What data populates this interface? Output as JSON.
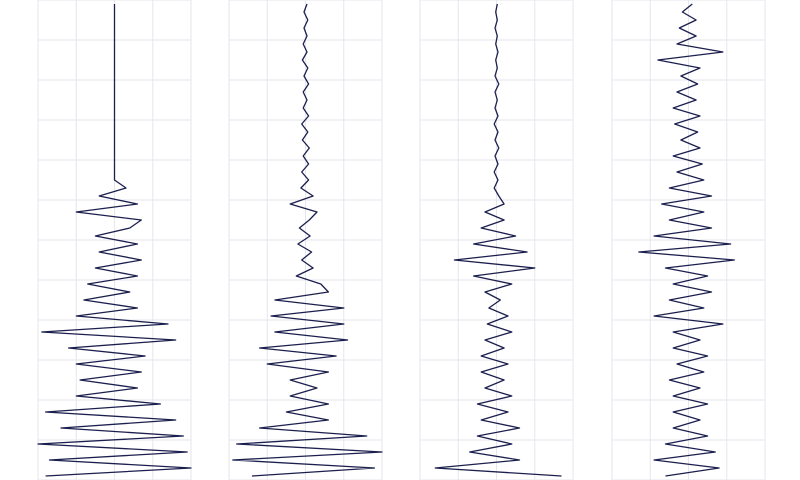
{
  "chart_data": [
    {
      "type": "line",
      "color": "#1b1f4d",
      "grid": true,
      "xlim": [
        -1,
        1
      ],
      "xticks": [
        -1,
        -0.5,
        0,
        0.5,
        1
      ],
      "ylim": [
        0,
        60
      ],
      "yticks": [
        0,
        5,
        10,
        15,
        20,
        25,
        30,
        35,
        40,
        45,
        50,
        55,
        60
      ],
      "values": [
        0,
        0,
        0,
        0,
        0,
        0,
        0,
        0,
        0,
        0,
        0,
        0,
        0,
        0,
        0,
        0,
        0,
        0,
        0,
        0,
        0,
        0,
        0,
        0.15,
        -0.2,
        0.3,
        -0.5,
        0.35,
        0.2,
        -0.25,
        0.3,
        -0.2,
        0.35,
        -0.25,
        0.3,
        -0.35,
        0.2,
        -0.4,
        0.3,
        -0.5,
        0.7,
        -0.95,
        0.8,
        -0.6,
        0.4,
        -0.5,
        0.35,
        -0.45,
        0.3,
        -0.5,
        0.6,
        -0.9,
        0.8,
        -0.7,
        0.9,
        -1.0,
        0.95,
        -0.85,
        1.0,
        -0.9
      ]
    },
    {
      "type": "line",
      "color": "#1b1f4d",
      "grid": true,
      "xlim": [
        -1,
        1
      ],
      "xticks": [
        -1,
        -0.5,
        0,
        0.5,
        1
      ],
      "ylim": [
        0,
        60
      ],
      "yticks": [
        0,
        5,
        10,
        15,
        20,
        25,
        30,
        35,
        40,
        45,
        50,
        55,
        60
      ],
      "values": [
        0.02,
        -0.02,
        0.03,
        -0.02,
        0.02,
        -0.03,
        0.02,
        -0.04,
        0.03,
        -0.02,
        0.04,
        -0.03,
        0.02,
        -0.03,
        0.04,
        -0.05,
        0.03,
        -0.04,
        0.05,
        -0.03,
        0.04,
        -0.05,
        0.04,
        -0.06,
        0.1,
        -0.2,
        0.15,
        0.05,
        -0.08,
        0.06,
        -0.1,
        0.08,
        -0.05,
        0.1,
        -0.12,
        0.2,
        0.3,
        -0.4,
        0.5,
        -0.45,
        0.5,
        -0.4,
        0.55,
        -0.6,
        0.4,
        -0.5,
        0.3,
        -0.2,
        0.15,
        -0.2,
        0.3,
        -0.25,
        0.3,
        -0.6,
        0.8,
        -0.9,
        1.0,
        -0.95,
        0.9,
        -0.7
      ]
    },
    {
      "type": "line",
      "color": "#1b1f4d",
      "grid": true,
      "xlim": [
        -1,
        1
      ],
      "xticks": [
        -1,
        -0.5,
        0,
        0.5,
        1
      ],
      "ylim": [
        0,
        60
      ],
      "yticks": [
        0,
        5,
        10,
        15,
        20,
        25,
        30,
        35,
        40,
        45,
        50,
        55,
        60
      ],
      "values": [
        0.01,
        -0.01,
        0.01,
        -0.02,
        0.01,
        -0.01,
        0.02,
        -0.01,
        0.01,
        -0.02,
        0.03,
        -0.02,
        0.01,
        -0.02,
        0.02,
        -0.03,
        0.02,
        -0.02,
        0.03,
        -0.02,
        0.02,
        -0.03,
        0.02,
        -0.03,
        0.03,
        0.1,
        -0.15,
        0.1,
        -0.2,
        0.25,
        -0.3,
        0.4,
        -0.55,
        0.5,
        -0.3,
        0.2,
        -0.15,
        0.05,
        -0.1,
        0.15,
        -0.12,
        0.2,
        -0.15,
        0.1,
        -0.2,
        0.15,
        -0.2,
        0.1,
        -0.15,
        0.2,
        -0.25,
        0.15,
        -0.2,
        0.3,
        -0.25,
        0.2,
        -0.35,
        0.3,
        -0.8,
        0.85
      ]
    },
    {
      "type": "line",
      "color": "#1b1f4d",
      "grid": true,
      "xlim": [
        -1,
        1
      ],
      "xticks": [
        -1,
        -0.5,
        0,
        0.5,
        1
      ],
      "ylim": [
        0,
        60
      ],
      "yticks": [
        0,
        5,
        10,
        15,
        20,
        25,
        30,
        35,
        40,
        45,
        50,
        55,
        60
      ],
      "values": [
        0.05,
        -0.08,
        0.1,
        -0.12,
        0.1,
        -0.15,
        0.45,
        -0.4,
        0.15,
        -0.1,
        0.12,
        -0.15,
        0.1,
        -0.2,
        0.15,
        -0.18,
        0.12,
        -0.1,
        0.15,
        -0.2,
        0.18,
        -0.15,
        0.2,
        -0.25,
        0.3,
        -0.35,
        0.2,
        -0.25,
        0.3,
        -0.45,
        0.55,
        -0.65,
        0.6,
        -0.3,
        0.25,
        -0.2,
        0.3,
        -0.25,
        0.2,
        -0.45,
        0.45,
        -0.2,
        0.15,
        -0.2,
        0.25,
        -0.15,
        0.2,
        -0.25,
        0.15,
        -0.2,
        0.25,
        -0.2,
        0.15,
        -0.2,
        0.25,
        -0.3,
        0.35,
        -0.45,
        0.4,
        -0.3
      ]
    }
  ]
}
